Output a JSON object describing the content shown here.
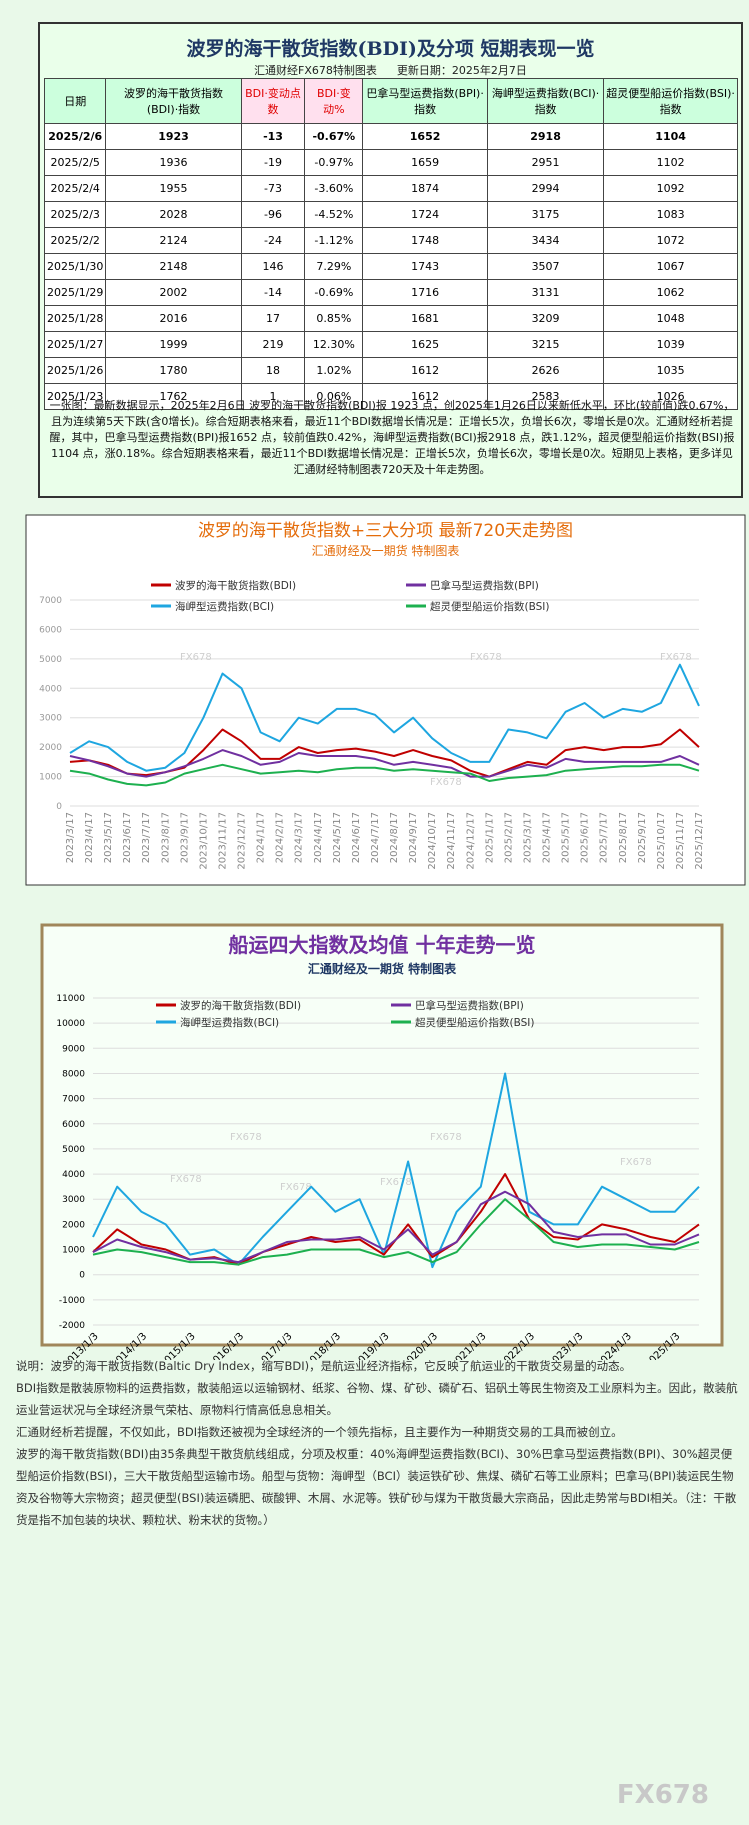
{
  "header": {
    "title": "波罗的海干散货指数(BDI)及分项  短期表现一览",
    "source": "汇通财经FX678特制图表",
    "updated": "更新日期：2025年2月7日"
  },
  "table": {
    "columns": [
      "日期",
      "波罗的海干散货指数(BDI)·指数",
      "BDI·变动点数",
      "BDI·变动%",
      "巴拿马型运费指数(BPI)·指数",
      "海岬型运费指数(BCI)·指数",
      "超灵便型船运价指数(BSI)·指数"
    ],
    "rows": [
      [
        "2025/2/6",
        "1923",
        "-13",
        "-0.67%",
        "1652",
        "2918",
        "1104"
      ],
      [
        "2025/2/5",
        "1936",
        "-19",
        "-0.97%",
        "1659",
        "2951",
        "1102"
      ],
      [
        "2025/2/4",
        "1955",
        "-73",
        "-3.60%",
        "1874",
        "2994",
        "1092"
      ],
      [
        "2025/2/3",
        "2028",
        "-96",
        "-4.52%",
        "1724",
        "3175",
        "1083"
      ],
      [
        "2025/2/2",
        "2124",
        "-24",
        "-1.12%",
        "1748",
        "3434",
        "1072"
      ],
      [
        "2025/1/30",
        "2148",
        "146",
        "7.29%",
        "1743",
        "3507",
        "1067"
      ],
      [
        "2025/1/29",
        "2002",
        "-14",
        "-0.69%",
        "1716",
        "3131",
        "1062"
      ],
      [
        "2025/1/28",
        "2016",
        "17",
        "0.85%",
        "1681",
        "3209",
        "1048"
      ],
      [
        "2025/1/27",
        "1999",
        "219",
        "12.30%",
        "1625",
        "3215",
        "1039"
      ],
      [
        "2025/1/26",
        "1780",
        "18",
        "1.02%",
        "1612",
        "2626",
        "1035"
      ],
      [
        "2025/1/23",
        "1762",
        "1",
        "0.06%",
        "1612",
        "2583",
        "1026"
      ]
    ]
  },
  "summary": "一张图：最新数据显示，2025年2月6日 波罗的海干散货指数(BDI)报 1923 点，创2025年1月26日以来新低水平，环比(较前值)跌0.67%，且为连续第5天下跌(含0增长)。综合短期表格来看，最近11个BDI数据增长情况是：正增长5次，负增长6次，零增长是0次。汇通财经析若提醒，其中，巴拿马型运费指数(BPI)报1652 点，较前值跌0.42%，海岬型运费指数(BCI)报2918 点，跌1.12%，超灵便型船运价指数(BSI)报1104 点，涨0.18%。综合短期表格来看，最近11个BDI数据增长情况是：正增长5次，负增长6次，零增长是0次。短期见上表格，更多详见汇通财经特制图表720天及十年走势图。",
  "chart_data": [
    {
      "type": "line",
      "title": "波罗的海干散货指数+三大分项  最新720天走势图",
      "subtitle": "汇通财经及一期货 特制图表",
      "watermark": "FX678",
      "categories": [
        "2023/3/17",
        "2023/4/17",
        "2023/5/17",
        "2023/6/17",
        "2023/7/17",
        "2023/8/17",
        "2023/9/17",
        "2023/10/17",
        "2023/11/17",
        "2023/12/17",
        "2024/1/17",
        "2024/2/17",
        "2024/3/17",
        "2024/4/17",
        "2024/5/17",
        "2024/6/17",
        "2024/7/17",
        "2024/8/17",
        "2024/9/17",
        "2024/10/17",
        "2024/11/17",
        "2024/12/17",
        "2025/1/17",
        "2025/2/17",
        "2025/3/17",
        "2025/4/17",
        "2025/5/17",
        "2025/6/17",
        "2025/7/17",
        "2025/8/17",
        "2025/9/17",
        "2025/10/17",
        "2025/11/17",
        "2025/12/17"
      ],
      "ylim": [
        0,
        7000
      ],
      "yticks": [
        0,
        1000,
        2000,
        3000,
        4000,
        5000,
        6000,
        7000
      ],
      "grid": true,
      "series": [
        {
          "name": "波罗的海干散货指数(BDI)",
          "color": "#c00000",
          "values": [
            1500,
            1550,
            1400,
            1100,
            1050,
            1150,
            1300,
            1900,
            2600,
            2200,
            1600,
            1600,
            2000,
            1800,
            1900,
            1950,
            1850,
            1700,
            1900,
            1700,
            1550,
            1200,
            1000,
            1250,
            1500,
            1400,
            1900,
            2000,
            1900,
            2000,
            2000,
            2100,
            2600,
            2000
          ]
        },
        {
          "name": "巴拿马型运费指数(BPI)",
          "color": "#7030a0",
          "values": [
            1700,
            1550,
            1350,
            1100,
            1000,
            1150,
            1350,
            1600,
            1900,
            1700,
            1400,
            1500,
            1800,
            1700,
            1700,
            1700,
            1600,
            1400,
            1500,
            1400,
            1300,
            1000,
            1000,
            1200,
            1400,
            1300,
            1600,
            1500,
            1500,
            1500,
            1500,
            1500,
            1700,
            1400
          ]
        },
        {
          "name": "海岬型运费指数(BCI)",
          "color": "#1ea6e0",
          "values": [
            1800,
            2200,
            2000,
            1500,
            1200,
            1300,
            1800,
            3000,
            4500,
            4000,
            2500,
            2200,
            3000,
            2800,
            3300,
            3300,
            3100,
            2500,
            3000,
            2300,
            1800,
            1500,
            1500,
            2600,
            2500,
            2300,
            3200,
            3500,
            3000,
            3300,
            3200,
            3500,
            4800,
            3400
          ]
        },
        {
          "name": "超灵便型船运价指数(BSI)",
          "color": "#1db04f",
          "values": [
            1200,
            1100,
            900,
            750,
            700,
            800,
            1100,
            1250,
            1400,
            1250,
            1100,
            1150,
            1200,
            1150,
            1250,
            1300,
            1300,
            1200,
            1250,
            1200,
            1150,
            1100,
            850,
            950,
            1000,
            1050,
            1200,
            1250,
            1300,
            1350,
            1350,
            1400,
            1400,
            1200
          ]
        }
      ]
    },
    {
      "type": "line",
      "title": "船运四大指数及均值 十年走势一览",
      "subtitle": "汇通财经及一期货 特制图表",
      "watermark": "FX678",
      "categories": [
        "2013/1/3",
        null,
        "2014/1/3",
        null,
        "2015/1/3",
        null,
        "2016/1/3",
        null,
        "2017/1/3",
        null,
        "2018/1/3",
        null,
        "2019/1/3",
        null,
        "2020/1/3",
        null,
        "2021/1/3",
        null,
        "2022/1/3",
        null,
        "2023/1/3",
        null,
        "2024/1/3",
        null,
        "2025/1/3",
        null
      ],
      "ylim": [
        -2000,
        11000
      ],
      "yticks": [
        -2000,
        -1000,
        0,
        1000,
        2000,
        3000,
        4000,
        5000,
        6000,
        7000,
        8000,
        9000,
        10000,
        11000
      ],
      "grid": true,
      "series": [
        {
          "name": "波罗的海干散货指数(BDI)",
          "color": "#c00000",
          "values": [
            900,
            1800,
            1200,
            1000,
            600,
            700,
            400,
            900,
            1200,
            1500,
            1300,
            1400,
            800,
            2000,
            700,
            1300,
            2500,
            4000,
            2200,
            1500,
            1400,
            2000,
            1800,
            1500,
            1300,
            2000
          ]
        },
        {
          "name": "巴拿马型运费指数(BPI)",
          "color": "#7030a0",
          "values": [
            900,
            1400,
            1100,
            900,
            600,
            650,
            500,
            900,
            1300,
            1400,
            1400,
            1500,
            1000,
            1800,
            800,
            1300,
            2800,
            3300,
            2800,
            1700,
            1500,
            1600,
            1600,
            1200,
            1200,
            1600
          ]
        },
        {
          "name": "海岬型运费指数(BCI)",
          "color": "#1ea6e0",
          "values": [
            1500,
            3500,
            2500,
            2000,
            800,
            1000,
            400,
            1500,
            2500,
            3500,
            2500,
            3000,
            800,
            4500,
            300,
            2500,
            3500,
            8000,
            2500,
            2000,
            2000,
            3500,
            3000,
            2500,
            2500,
            3500
          ]
        },
        {
          "name": "超灵便型船运价指数(BSI)",
          "color": "#1db04f",
          "values": [
            800,
            1000,
            900,
            700,
            500,
            500,
            400,
            700,
            800,
            1000,
            1000,
            1000,
            700,
            900,
            500,
            900,
            2000,
            3000,
            2200,
            1300,
            1100,
            1200,
            1200,
            1100,
            1000,
            1300
          ]
        }
      ]
    }
  ],
  "notes": [
    "说明：波罗的海干散货指数(Baltic Dry Index，缩写BDI)，是航运业经济指标，它反映了航运业的干散货交易量的动态。",
    "BDI指数是散装原物料的运费指数，散装船运以运输钢材、纸浆、谷物、煤、矿砂、磷矿石、铝矾土等民生物资及工业原料为主。因此，散装航运业营运状况与全球经济景气荣枯、原物料行情高低息息相关。",
    "汇通财经析若提醒，不仅如此，BDI指数还被视为全球经济的一个领先指标，且主要作为一种期货交易的工具而被创立。",
    "波罗的海干散货指数(BDI)由35条典型干散货航线组成，分项及权重：40%海岬型运费指数(BCI)、30%巴拿马型运费指数(BPI)、30%超灵便型船运价指数(BSI)，三大干散货船型运输市场。船型与货物：海岬型（BCI）装运铁矿砂、焦煤、磷矿石等工业原料；巴拿马(BPI)装运民生物资及谷物等大宗物资；超灵便型(BSI)装运磷肥、碳酸钾、木屑、水泥等。铁矿砂与煤为干散货最大宗商品，因此走势常与BDI相关。（注：干散货是指不加包装的块状、颗粒状、粉末状的货物。）"
  ],
  "watermark": "FX678"
}
